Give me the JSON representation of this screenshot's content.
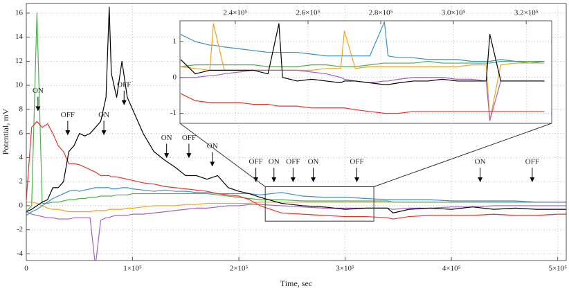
{
  "chart_data": [
    {
      "type": "line",
      "xlabel": "Time, sec",
      "ylabel": "Potential, mV",
      "xlim": [
        0,
        508000
      ],
      "ylim": [
        -4.55,
        16.8
      ],
      "xticks": [
        0,
        {
          "value": 100000,
          "label": "1×10⁵"
        },
        {
          "value": 200000,
          "label": "2×10⁵"
        },
        {
          "value": 300000,
          "label": "3×10⁵"
        },
        {
          "value": 400000,
          "label": "4×10⁵"
        },
        {
          "value": 500000,
          "label": "5×10⁵"
        }
      ],
      "yticks": [
        -4,
        -2,
        0,
        2,
        4,
        6,
        8,
        10,
        12,
        14,
        16
      ],
      "grid": true,
      "x": [
        0,
        5000,
        10000,
        15000,
        20000,
        25000,
        30000,
        35000,
        40000,
        45000,
        50000,
        55000,
        60000,
        65000,
        70000,
        75000,
        78000,
        80000,
        85000,
        90000,
        95000,
        100000,
        110000,
        120000,
        130000,
        140000,
        150000,
        160000,
        170000,
        180000,
        190000,
        200000,
        210000,
        220000,
        240000,
        260000,
        280000,
        300000,
        320000,
        340000,
        345000,
        360000,
        380000,
        400000,
        420000,
        440000,
        460000,
        480000,
        500000,
        508000
      ],
      "series": [
        {
          "color": "#f2a21c",
          "values": [
            0.3,
            0.3,
            0.2,
            0,
            -0.2,
            -0.3,
            -0.3,
            -0.4,
            -0.5,
            -0.5,
            -0.5,
            -0.5,
            -0.5,
            -0.4,
            -0.4,
            -0.4,
            -0.3,
            -0.3,
            -0.3,
            -0.3,
            -0.2,
            -0.2,
            -0.1,
            0,
            0,
            0,
            0.1,
            0.1,
            0.2,
            0.2,
            0.2,
            0.2,
            0.2,
            0.3,
            0.3,
            0.3,
            0.3,
            0.3,
            0.3,
            0.3,
            0.3,
            0.3,
            0.3,
            0.3,
            0.3,
            0.3,
            0.3,
            0.3,
            0.3,
            0.3
          ]
        },
        {
          "color": "#a060c0",
          "values": [
            -0.5,
            -0.7,
            -0.8,
            -0.9,
            -1.0,
            -1.0,
            -1.1,
            -1.1,
            -1.1,
            -1.0,
            -1.0,
            -1.0,
            -1.0,
            -5.0,
            -1.2,
            -1.0,
            -1.0,
            -0.9,
            -0.8,
            -0.8,
            -0.8,
            -0.7,
            -0.7,
            -0.6,
            -0.5,
            -0.4,
            -0.3,
            -0.2,
            -0.2,
            -0.1,
            0,
            0,
            0.1,
            0.1,
            0,
            -0.1,
            -0.2,
            -0.2,
            -0.2,
            -0.2,
            -0.3,
            -0.2,
            -0.2,
            -0.1,
            -0.1,
            0,
            0,
            0,
            0,
            0
          ]
        },
        {
          "color": "#4fae4f",
          "values": [
            -0.5,
            0,
            16,
            0.2,
            0.2,
            0.3,
            0.3,
            0.4,
            0.5,
            0.5,
            0.6,
            0.6,
            0.7,
            0.7,
            0.8,
            0.8,
            0.8,
            0.8,
            0.9,
            0.9,
            0.9,
            1.0,
            1.0,
            1.0,
            1.0,
            1.0,
            1.0,
            1.0,
            1.0,
            0.9,
            0.8,
            0.7,
            0.6,
            0.5,
            0.5,
            0.4,
            0.4,
            0.4,
            0.4,
            0.4,
            0.3,
            0.3,
            0.3,
            0.3,
            0.3,
            0.3,
            0.3,
            0.3,
            0.3,
            0.3
          ]
        },
        {
          "color": "#3a8ec9",
          "values": [
            -0.8,
            -0.5,
            -0.3,
            0,
            0.3,
            0.6,
            0.8,
            1.0,
            1.2,
            1.3,
            1.2,
            1.3,
            1.4,
            1.5,
            1.5,
            1.5,
            1.5,
            1.4,
            1.4,
            1.5,
            1.5,
            1.4,
            1.3,
            1.2,
            1.3,
            1.2,
            1.2,
            1.1,
            1.1,
            1.0,
            1.0,
            1.0,
            1.0,
            0.9,
            1.1,
            0.8,
            0.7,
            0.7,
            0.6,
            0.5,
            0.5,
            0.5,
            0.5,
            0.4,
            0.4,
            0.4,
            0.4,
            0.3,
            0.3,
            0.3
          ]
        },
        {
          "color": "#e8332a",
          "values": [
            0.5,
            6.5,
            7,
            6.5,
            6.8,
            6,
            5,
            4.5,
            3.5,
            3.5,
            3.4,
            3.2,
            3.0,
            2.8,
            2.5,
            2.5,
            2.5,
            2.4,
            2.4,
            2.3,
            2.2,
            2.1,
            1.9,
            1.8,
            1.6,
            1.5,
            1.4,
            1.3,
            1.2,
            1.0,
            0.9,
            0.8,
            0.5,
            0,
            -0.6,
            -0.7,
            -0.8,
            -0.9,
            -0.9,
            -1.0,
            -1.1,
            -0.9,
            -0.8,
            -0.8,
            -0.8,
            -0.7,
            -0.8,
            -0.8,
            -0.7,
            -0.7
          ]
        },
        {
          "color": "#000000",
          "values": [
            -0.5,
            -0.3,
            0,
            0.3,
            0.5,
            1.5,
            1.5,
            2,
            4.5,
            5,
            6,
            5.8,
            6,
            6.5,
            7,
            9,
            16.5,
            11,
            9,
            12,
            9,
            8,
            6,
            4.5,
            3.8,
            3.2,
            2.5,
            2.5,
            2.2,
            2.5,
            1.5,
            1.2,
            1.0,
            0.7,
            0.2,
            0,
            -0.1,
            -0.3,
            -0.2,
            -0.2,
            -0.6,
            -0.3,
            -0.2,
            -0.3,
            -0.1,
            -0.3,
            -0.2,
            -0.3,
            -0.3,
            -0.3
          ]
        }
      ],
      "annotations": [
        {
          "text": "ON",
          "x": 11000,
          "y": 7.9
        },
        {
          "text": "OFF",
          "x": 39000,
          "y": 5.9
        },
        {
          "text": "ON",
          "x": 73000,
          "y": 5.9
        },
        {
          "text": "OFF",
          "x": 92000,
          "y": 8.4
        },
        {
          "text": "ON",
          "x": 132000,
          "y": 4.0
        },
        {
          "text": "OFF",
          "x": 153000,
          "y": 4.0
        },
        {
          "text": "ON",
          "x": 175000,
          "y": 3.3
        },
        {
          "text": "OFF",
          "x": 216000,
          "y": 2.0
        },
        {
          "text": "ON",
          "x": 233000,
          "y": 2.0
        },
        {
          "text": "OFF",
          "x": 251000,
          "y": 2.0
        },
        {
          "text": "ON",
          "x": 270000,
          "y": 2.0
        },
        {
          "text": "OFF",
          "x": 311000,
          "y": 2.0
        },
        {
          "text": "ON",
          "x": 427000,
          "y": 2.0
        },
        {
          "text": "OFF",
          "x": 476000,
          "y": 2.0
        }
      ]
    },
    {
      "type": "line",
      "xlim": [
        224800,
        327000
      ],
      "ylim": [
        -1.28,
        1.58
      ],
      "xticks": [
        {
          "value": 240000,
          "label": "2.4×10⁵"
        },
        {
          "value": 260000,
          "label": "2.6×10⁵"
        },
        {
          "value": 280000,
          "label": "2.8×10⁵"
        },
        {
          "value": 300000,
          "label": "3.0×10⁵"
        },
        {
          "value": 320000,
          "label": "3.2×10⁵"
        }
      ],
      "yticks": [
        -1,
        0,
        1
      ],
      "grid": true,
      "x": [
        225000,
        229000,
        233000,
        234000,
        237000,
        241000,
        245000,
        249000,
        252000,
        253000,
        257000,
        261000,
        265000,
        269000,
        270000,
        273000,
        277000,
        281000,
        282000,
        285000,
        289000,
        293000,
        297000,
        301000,
        305000,
        309000,
        310000,
        313000,
        317000,
        321000,
        325000
      ],
      "series": [
        {
          "color": "#4fae4f",
          "values": [
            0.3,
            0.35,
            0.35,
            0.35,
            0.35,
            0.35,
            0.35,
            0.3,
            0.3,
            0.3,
            0.3,
            0.35,
            0.35,
            0.3,
            0.3,
            0.3,
            0.35,
            0.4,
            0.4,
            0.4,
            0.4,
            0.45,
            0.4,
            0.4,
            0.4,
            0.4,
            0.4,
            0.45,
            0.45,
            0.45,
            0.45
          ]
        },
        {
          "color": "#3a8ec9",
          "values": [
            1.2,
            1.0,
            0.9,
            0.9,
            0.85,
            0.8,
            0.75,
            0.7,
            0.7,
            0.7,
            0.7,
            0.65,
            0.6,
            0.6,
            0.6,
            0.6,
            0.6,
            1.55,
            0.6,
            0.55,
            0.55,
            0.5,
            0.5,
            0.5,
            0.45,
            0.45,
            0.45,
            0.5,
            0.45,
            0.4,
            0.45
          ]
        },
        {
          "color": "#f2a21c",
          "values": [
            0.3,
            0.25,
            0.2,
            1.5,
            0.2,
            0.2,
            0.2,
            0.2,
            0.2,
            0.2,
            0.2,
            0.2,
            0.25,
            0.25,
            1.3,
            0.25,
            0.3,
            0.3,
            0.3,
            0.3,
            0.3,
            0.3,
            0.3,
            0.3,
            0.35,
            0.35,
            -1.2,
            0.35,
            0.4,
            0.4,
            0.4
          ]
        },
        {
          "color": "#a060c0",
          "values": [
            0,
            0,
            0.05,
            0.05,
            0.1,
            0.15,
            0.2,
            0.2,
            0.2,
            0.2,
            0.2,
            0.15,
            0.1,
            0,
            -0.05,
            -0.1,
            -0.15,
            -0.1,
            -0.1,
            -0.05,
            0,
            0,
            0,
            -0.05,
            -0.05,
            -0.1,
            -1.2,
            -0.1,
            -0.1,
            -0.1,
            -0.1
          ]
        },
        {
          "color": "#e8332a",
          "values": [
            -0.45,
            -0.65,
            -0.7,
            -0.7,
            -0.7,
            -0.7,
            -0.75,
            -0.75,
            -0.8,
            -0.8,
            -0.8,
            -0.85,
            -0.85,
            -0.85,
            -0.85,
            -0.9,
            -0.95,
            -1.0,
            -1.0,
            -1.0,
            -0.95,
            -0.95,
            -0.95,
            -0.95,
            -0.95,
            -0.95,
            -0.95,
            -0.95,
            -0.95,
            -0.95,
            -0.95
          ]
        },
        {
          "color": "#000000",
          "values": [
            0.5,
            0.1,
            0.2,
            0.2,
            0.2,
            0.2,
            0.2,
            0.1,
            1.5,
            0.0,
            -0.1,
            -0.05,
            -0.1,
            -0.15,
            -0.1,
            -0.1,
            -0.15,
            -0.2,
            -0.2,
            -0.15,
            -0.1,
            -0.1,
            -0.05,
            -0.1,
            -0.1,
            -0.1,
            1.2,
            -0.1,
            -0.1,
            -0.1,
            -0.1
          ]
        }
      ]
    }
  ]
}
